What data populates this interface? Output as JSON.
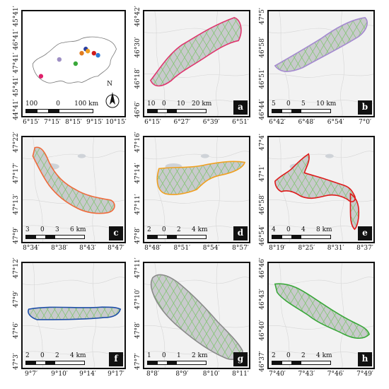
{
  "colors": {
    "lake_fill": "#c9cacd",
    "hatch": "#7cc46b"
  },
  "panels": [
    {
      "id": "overview",
      "y_ticks": [
        "45°41′",
        "46°41′",
        "47°41′",
        "45°41′",
        "44°41′"
      ],
      "x_ticks": [
        "6°15′",
        "7°15′",
        "8°15′",
        "9°15′",
        "10°15′"
      ],
      "scale": [
        "100",
        "0",
        "100 km"
      ],
      "north_label": "N",
      "lake_points": [
        {
          "color": "#e0206a"
        },
        {
          "color": "#9e8fc4"
        },
        {
          "color": "#3aa83a"
        },
        {
          "color": "#e07b20"
        },
        {
          "color": "#2a3fa0"
        },
        {
          "color": "#d01a1a"
        },
        {
          "color": "#f0a020"
        },
        {
          "color": "#2e7bd6"
        }
      ]
    },
    {
      "id": "a",
      "letter": "a",
      "outline": "#e0356e",
      "y_ticks": [
        "46°42′",
        "46°30′",
        "46°18′",
        "46°6′"
      ],
      "x_ticks": [
        "6°15′",
        "6°27′",
        "6°39′",
        "6°51′"
      ],
      "scale": [
        "10",
        "0",
        "10",
        "20 km"
      ]
    },
    {
      "id": "b",
      "letter": "b",
      "outline": "#a58ad0",
      "y_ticks": [
        "47°5′",
        "46°58′",
        "46°51′",
        "46°44′"
      ],
      "x_ticks": [
        "6°42′",
        "6°48′",
        "6°54′",
        "7°0′"
      ],
      "scale": [
        "5",
        "0",
        "5",
        "10 km"
      ]
    },
    {
      "id": "c",
      "letter": "c",
      "outline": "#f06a3a",
      "y_ticks": [
        "47°22′",
        "47°17′",
        "47°13′",
        "47°9′"
      ],
      "x_ticks": [
        "8°34′",
        "8°38′",
        "8°43′",
        "8°47′"
      ],
      "scale": [
        "3",
        "0",
        "3",
        "6 km"
      ]
    },
    {
      "id": "d",
      "letter": "d",
      "outline": "#f0a020",
      "y_ticks": [
        "47°16′",
        "47°14′",
        "47°11′",
        "47°8′"
      ],
      "x_ticks": [
        "8°48′",
        "8°51′",
        "8°54′",
        "8°57′"
      ],
      "scale": [
        "2",
        "0",
        "2",
        "4 km"
      ]
    },
    {
      "id": "e",
      "letter": "e",
      "outline": "#e01a1a",
      "y_ticks": [
        "47°4′",
        "47°1′",
        "46°58′",
        "46°54′"
      ],
      "x_ticks": [
        "8°19′",
        "8°25′",
        "8°31′",
        "8°37′"
      ],
      "scale": [
        "4",
        "0",
        "4",
        "8 km"
      ]
    },
    {
      "id": "f",
      "letter": "f",
      "outline": "#1f4fa8",
      "y_ticks": [
        "47°12′",
        "47°9′",
        "47°6′",
        "47°3′"
      ],
      "x_ticks": [
        "9°7′",
        "9°10′",
        "9°14′",
        "9°17′"
      ],
      "scale": [
        "2",
        "0",
        "2",
        "4 km"
      ]
    },
    {
      "id": "g",
      "letter": "g",
      "outline": "#8a8a8a",
      "y_ticks": [
        "47°11′",
        "47°10′",
        "47°8′",
        "47°7′"
      ],
      "x_ticks": [
        "8°8′",
        "8°9′",
        "8°10′",
        "8°11′"
      ],
      "scale": [
        "1",
        "0",
        "1",
        "2 km"
      ]
    },
    {
      "id": "h",
      "letter": "h",
      "outline": "#3aa83a",
      "y_ticks": [
        "46°46′",
        "46°43′",
        "46°40′",
        "46°37′"
      ],
      "x_ticks": [
        "7°40′",
        "7°43′",
        "7°46′",
        "7°49′"
      ],
      "scale": [
        "2",
        "0",
        "2",
        "4 km"
      ]
    }
  ]
}
